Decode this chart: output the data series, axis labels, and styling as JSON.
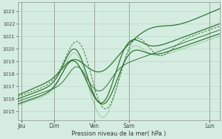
{
  "bg_color": "#d4ede0",
  "grid_color": "#b0d4c0",
  "line_color": "#2a6e2a",
  "ylabel_values": [
    1015,
    1016,
    1017,
    1018,
    1019,
    1020,
    1021,
    1022,
    1023
  ],
  "ylim": [
    1014.3,
    1023.7
  ],
  "xlabel": "Pression niveau de la mer( hPa )",
  "xtick_labels": [
    "Jeu",
    "Dim",
    "Ven",
    "Sam",
    "Lun"
  ],
  "xtick_positions": [
    0.02,
    0.18,
    0.38,
    0.55,
    0.95
  ],
  "title": ""
}
